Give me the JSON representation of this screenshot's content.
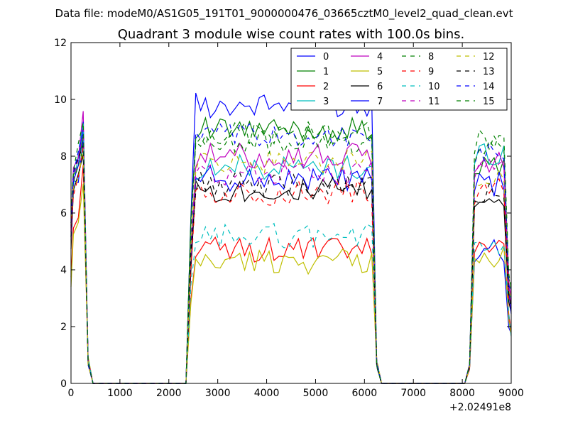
{
  "chart_data": {
    "type": "line",
    "suptitle": "Data file: modeM0/AS1G05_191T01_9000000476_03665cztM0_level2_quad_clean.evt",
    "title": "Quadrant 3 module wise count rates with 100.0s bins.",
    "xlabel": "",
    "ylabel": "",
    "x_offset_label": "+2.02491e8",
    "xlim": [
      0,
      9000
    ],
    "ylim": [
      0,
      12
    ],
    "x_ticks": [
      "0",
      "1000",
      "2000",
      "3000",
      "4000",
      "5000",
      "6000",
      "7000",
      "8000",
      "9000"
    ],
    "y_ticks": [
      "0",
      "2",
      "4",
      "6",
      "8",
      "10",
      "12"
    ],
    "legend_position": "top-right",
    "bin_edges": [
      0,
      50,
      150,
      250,
      350,
      450,
      2350,
      2450,
      2550,
      2650,
      2750,
      2850,
      2950,
      3050,
      3150,
      3250,
      3350,
      3450,
      3550,
      3650,
      3750,
      3850,
      3950,
      4050,
      4150,
      4250,
      4350,
      4450,
      4550,
      4650,
      4750,
      4850,
      4950,
      5050,
      5150,
      5250,
      5350,
      5450,
      5550,
      5650,
      5750,
      5850,
      5950,
      6050,
      6150,
      6250,
      6350,
      8050,
      8150,
      8250,
      8350,
      8450,
      8550,
      8650,
      8750,
      8850,
      8950,
      9000
    ],
    "series": [
      {
        "name": "0",
        "color": "#0000ff",
        "style": "solid",
        "levels": [
          7.5,
          9.8,
          4.7
        ],
        "seed": 1
      },
      {
        "name": "1",
        "color": "#008000",
        "style": "solid",
        "levels": [
          7.8,
          8.9,
          7.6
        ],
        "seed": 2
      },
      {
        "name": "2",
        "color": "#ff0000",
        "style": "solid",
        "levels": [
          6.0,
          4.7,
          4.9
        ],
        "seed": 3
      },
      {
        "name": "3",
        "color": "#00bfbf",
        "style": "solid",
        "levels": [
          7.6,
          7.6,
          8.1
        ],
        "seed": 4
      },
      {
        "name": "4",
        "color": "#bf00bf",
        "style": "solid",
        "levels": [
          7.9,
          8.0,
          7.8
        ],
        "seed": 5
      },
      {
        "name": "5",
        "color": "#bfbf00",
        "style": "solid",
        "levels": [
          5.6,
          4.3,
          4.5
        ],
        "seed": 6
      },
      {
        "name": "6",
        "color": "#000000",
        "style": "solid",
        "levels": [
          7.3,
          6.8,
          6.6
        ],
        "seed": 7
      },
      {
        "name": "7",
        "color": "#0000ff",
        "style": "solid",
        "levels": [
          7.6,
          7.2,
          7.0
        ],
        "seed": 8
      },
      {
        "name": "8",
        "color": "#008000",
        "style": "dashed",
        "levels": [
          7.6,
          8.8,
          8.5
        ],
        "seed": 9
      },
      {
        "name": "9",
        "color": "#ff0000",
        "style": "dashed",
        "levels": [
          7.4,
          6.7,
          6.8
        ],
        "seed": 10
      },
      {
        "name": "10",
        "color": "#00bfbf",
        "style": "dashed",
        "levels": [
          7.7,
          5.2,
          5.0
        ],
        "seed": 11
      },
      {
        "name": "11",
        "color": "#bf00bf",
        "style": "dashed",
        "levels": [
          7.6,
          7.4,
          7.6
        ],
        "seed": 12
      },
      {
        "name": "12",
        "color": "#bfbf00",
        "style": "dashed",
        "levels": [
          7.5,
          7.8,
          7.4
        ],
        "seed": 13
      },
      {
        "name": "13",
        "color": "#000000",
        "style": "dashed",
        "levels": [
          7.7,
          7.0,
          6.7
        ],
        "seed": 14
      },
      {
        "name": "14",
        "color": "#0000ff",
        "style": "dashed",
        "levels": [
          8.0,
          8.7,
          8.1
        ],
        "seed": 15
      },
      {
        "name": "15",
        "color": "#008000",
        "style": "dashed",
        "levels": [
          8.0,
          8.5,
          8.4
        ],
        "seed": 16
      }
    ]
  }
}
